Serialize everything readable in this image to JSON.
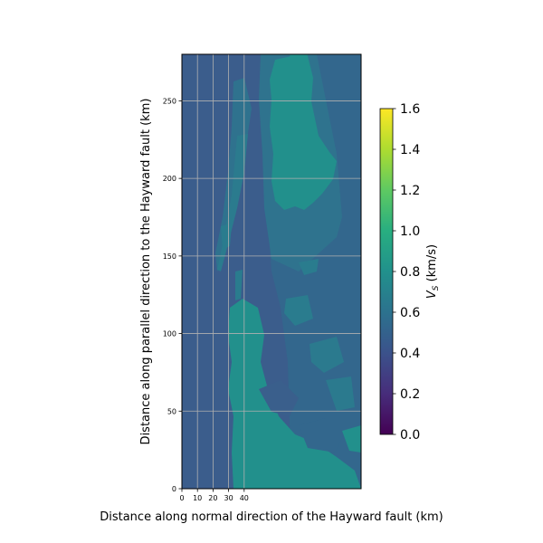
{
  "chart_data": {
    "type": "heatmap",
    "title": "",
    "xlabel": "Distance along normal direction of the Hayward fault (km)",
    "ylabel": "Distance along parallel direction to the Hayward fault (km)",
    "x_ticks": [
      0,
      10,
      20,
      30,
      40
    ],
    "y_ticks": [
      0,
      50,
      100,
      150,
      200,
      250
    ],
    "xlim": [
      0,
      116
    ],
    "ylim": [
      0,
      280
    ],
    "grid": true,
    "colormap": "viridis",
    "colorbar": {
      "label": "V_S (km/s)",
      "label_main": "V",
      "label_sub": "S",
      "label_unit": " (km/s)",
      "min": 0.0,
      "max": 1.6,
      "ticks": [
        "0.0",
        "0.2",
        "0.4",
        "0.6",
        "0.8",
        "1.0",
        "1.2",
        "1.4",
        "1.6"
      ]
    },
    "colors": {
      "background_vs": "#3b5d8c",
      "mid_vs": "#2f748e",
      "high_vs": "#21918c"
    }
  }
}
